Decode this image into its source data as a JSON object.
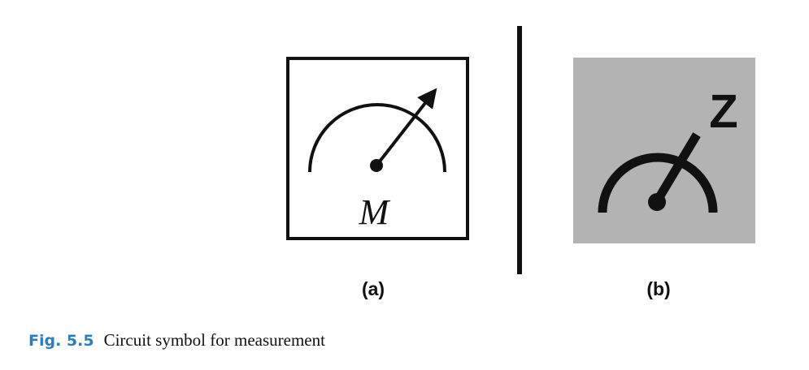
{
  "figure": {
    "panel_a": {
      "label": "(a)",
      "symbol_letter": "M"
    },
    "panel_b": {
      "label": "(b)",
      "symbol_letter": "Z",
      "background": "#b3b3b3"
    },
    "caption": {
      "number": "Fig. 5.5",
      "text": "Circuit symbol for measurement",
      "number_color": "#2a7fc1"
    }
  }
}
